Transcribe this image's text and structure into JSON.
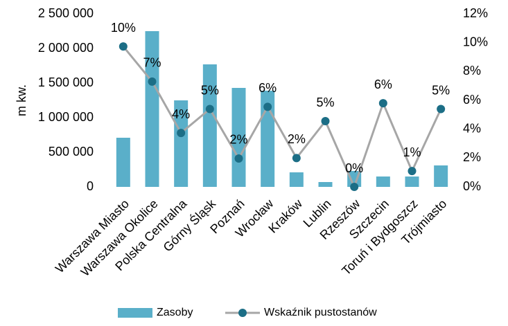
{
  "chart_data": {
    "type": "bar-line",
    "y_label": "m kw.",
    "categories": [
      "Warszawa Miasto",
      "Warszawa Okolice",
      "Polska Centralna",
      "Górny Śląsk",
      "Poznań",
      "Wrocław",
      "Kraków",
      "Lublin",
      "Rzeszów",
      "Szczecin",
      "Toruń i Bydgoszcz",
      "Trójmiasto"
    ],
    "series": [
      {
        "name": "Zasoby",
        "type": "bar",
        "color": "#5aafc9",
        "values": [
          710000,
          2250000,
          1250000,
          1770000,
          1430000,
          1390000,
          210000,
          70000,
          230000,
          150000,
          150000,
          310000
        ]
      },
      {
        "name": "Wskaźnik pustostanów",
        "type": "line",
        "axis": "y2",
        "color": "#a6a6a6",
        "marker_color": "#1c6e86",
        "values": [
          9.74,
          7.3,
          3.74,
          5.4,
          1.97,
          5.55,
          2.0,
          4.56,
          0,
          5.8,
          1.1,
          5.4
        ],
        "value_labels": [
          "10%",
          "7%",
          "4%",
          "5%",
          "2%",
          "6%",
          "2%",
          "5%",
          "0%",
          "6%",
          "1%",
          "5%"
        ]
      }
    ],
    "ylim": [
      0,
      2500000
    ],
    "yticks": [
      0,
      {
        "value": 500000,
        "label": "500 000"
      },
      {
        "value": 1000000,
        "label": "1 000 000"
      },
      {
        "value": 1500000,
        "label": "1 500 000"
      },
      {
        "value": 2000000,
        "label": "2 000 000"
      },
      {
        "value": 2500000,
        "label": "2 500 000"
      }
    ],
    "y2lim": [
      0,
      12
    ],
    "y2ticks": [
      {
        "value": 0,
        "label": "0%"
      },
      {
        "value": 2,
        "label": "2%"
      },
      {
        "value": 4,
        "label": "4%"
      },
      {
        "value": 6,
        "label": "6%"
      },
      {
        "value": 8,
        "label": "8%"
      },
      {
        "value": 10,
        "label": "10%"
      },
      {
        "value": 12,
        "label": "12%"
      }
    ],
    "legend": "bottom"
  }
}
